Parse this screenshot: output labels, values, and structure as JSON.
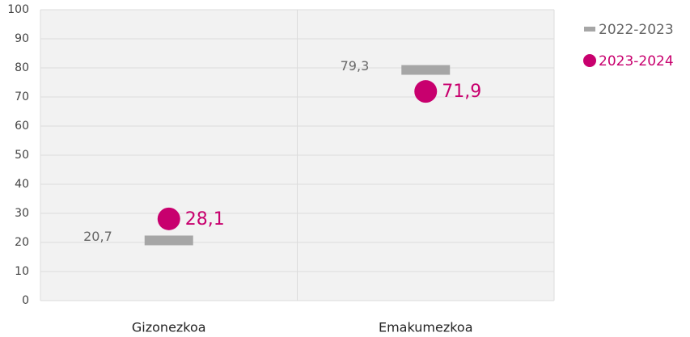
{
  "chart_data": {
    "type": "dot",
    "categories": [
      "Gizonezkoa",
      "Emakumezkoa"
    ],
    "series": [
      {
        "name": "2022-2023",
        "color": "#a6a6a6",
        "marker": "dash",
        "values": [
          20.7,
          79.3
        ],
        "value_labels": [
          "20,7",
          "79,3"
        ]
      },
      {
        "name": "2023-2024",
        "color": "#c8006e",
        "marker": "circle",
        "values": [
          28.1,
          71.9
        ],
        "value_labels": [
          "28,1",
          "71,9"
        ]
      }
    ],
    "ylim": [
      0,
      100
    ],
    "yticks": [
      0,
      10,
      20,
      30,
      40,
      50,
      60,
      70,
      80,
      90,
      100
    ],
    "grid": true,
    "legend": "top-right"
  }
}
